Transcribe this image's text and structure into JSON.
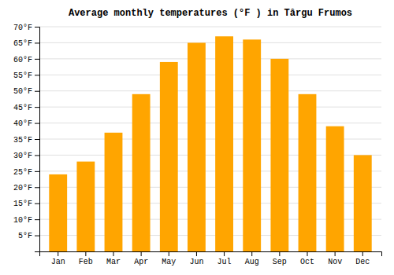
{
  "chart_data": {
    "type": "bar",
    "title": "Average monthly temperatures (°F ) in Târgu Frumos",
    "categories": [
      "Jan",
      "Feb",
      "Mar",
      "Apr",
      "May",
      "Jun",
      "Jul",
      "Aug",
      "Sep",
      "Oct",
      "Nov",
      "Dec"
    ],
    "values": [
      24,
      28,
      37,
      49,
      59,
      65,
      67,
      66,
      60,
      49,
      39,
      30
    ],
    "color": "#FFA500",
    "ylim": [
      0,
      70
    ],
    "yticks": [
      {
        "value": 5,
        "label": "5°F"
      },
      {
        "value": 10,
        "label": "10°F"
      },
      {
        "value": 15,
        "label": "15°F"
      },
      {
        "value": 20,
        "label": "20°F"
      },
      {
        "value": 25,
        "label": "25°F"
      },
      {
        "value": 30,
        "label": "30°F"
      },
      {
        "value": 35,
        "label": "35°F"
      },
      {
        "value": 40,
        "label": "40°F"
      },
      {
        "value": 45,
        "label": "45°F"
      },
      {
        "value": 50,
        "label": "50°F"
      },
      {
        "value": 55,
        "label": "55°F"
      },
      {
        "value": 60,
        "label": "60°F"
      },
      {
        "value": 65,
        "label": "65°F"
      },
      {
        "value": 70,
        "label": "70°F"
      }
    ],
    "grid": true
  }
}
